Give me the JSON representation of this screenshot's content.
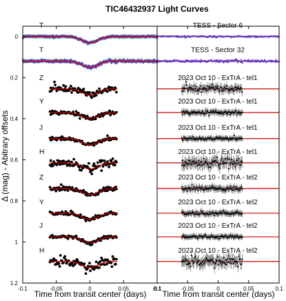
{
  "chart_data": {
    "type": "scatter",
    "title": "TIC46432937 Light Curves",
    "xlabel": "Time from transit center (days)",
    "ylabel": "Δ (mag) - Abitrary offsets",
    "xlim": [
      -0.1,
      0.1
    ],
    "ylim": [
      1.2,
      -0.05
    ],
    "x_ticks": [
      "-0.1",
      "-0.05",
      "0",
      "0.05",
      "0.1"
    ],
    "y_ticks": [
      {
        "value": 0,
        "label": "0"
      },
      {
        "value": 0.2,
        "label": "0.2"
      },
      {
        "value": 0.4,
        "label": "0.4"
      },
      {
        "value": 0.6,
        "label": "0.6"
      },
      {
        "value": 0.8,
        "label": "0.8"
      },
      {
        "value": 1.0,
        "label": "1"
      },
      {
        "value": 1.2,
        "label": "1.2"
      }
    ],
    "panels": [
      "left: light curves with transit model",
      "right: residuals"
    ],
    "depth_mag": 0.03,
    "transit_halfwidth_days": 0.018,
    "series": [
      {
        "band": "T",
        "label": "TESS - Sector 6",
        "offset": 0.0,
        "data_range": [
          -0.1,
          0.1
        ],
        "point_color": "#6a3dbf",
        "noise": 0.002
      },
      {
        "band": "T",
        "label": "TESS - Sector 32",
        "offset": 0.12,
        "data_range": [
          -0.1,
          0.1
        ],
        "point_color": "#6a3dbf",
        "noise": 0.003
      },
      {
        "band": "Z",
        "label": "2023 Oct 10 - ExTrA - tel1",
        "offset": 0.255,
        "data_range": [
          -0.06,
          0.04
        ],
        "point_color": "#000000",
        "noise": 0.008
      },
      {
        "band": "Y",
        "label": "2023 Oct 10 - ExTrA - tel1",
        "offset": 0.37,
        "data_range": [
          -0.06,
          0.04
        ],
        "point_color": "#000000",
        "noise": 0.005
      },
      {
        "band": "J",
        "label": "2023 Oct 10 - ExTrA - tel1",
        "offset": 0.497,
        "data_range": [
          -0.06,
          0.04
        ],
        "point_color": "#000000",
        "noise": 0.004
      },
      {
        "band": "H",
        "label": "2023 Oct 10 - ExTrA - tel1",
        "offset": 0.615,
        "data_range": [
          -0.06,
          0.04
        ],
        "point_color": "#000000",
        "noise": 0.012
      },
      {
        "band": "Z",
        "label": "2023 Oct 10 - ExTrA - tel2",
        "offset": 0.74,
        "data_range": [
          -0.06,
          0.04
        ],
        "point_color": "#000000",
        "noise": 0.006
      },
      {
        "band": "Y",
        "label": "2023 Oct 10 - ExTrA - tel2",
        "offset": 0.86,
        "data_range": [
          -0.06,
          0.04
        ],
        "point_color": "#000000",
        "noise": 0.005
      },
      {
        "band": "J",
        "label": "2023 Oct 10 - ExTrA - tel2",
        "offset": 0.975,
        "data_range": [
          -0.06,
          0.04
        ],
        "point_color": "#000000",
        "noise": 0.004
      },
      {
        "band": "H",
        "label": "2023 Oct 10 - ExTrA - tel2",
        "offset": 1.095,
        "data_range": [
          -0.06,
          0.04
        ],
        "point_color": "#000000",
        "noise": 0.012
      }
    ],
    "colors": {
      "model": "#cc0000",
      "residual_line": "#cc0000",
      "tess_points": "#6a3dbf",
      "tess_errorbars": "#2f8f8f",
      "ground_points": "#000000"
    },
    "grid": false,
    "legend": "none"
  }
}
